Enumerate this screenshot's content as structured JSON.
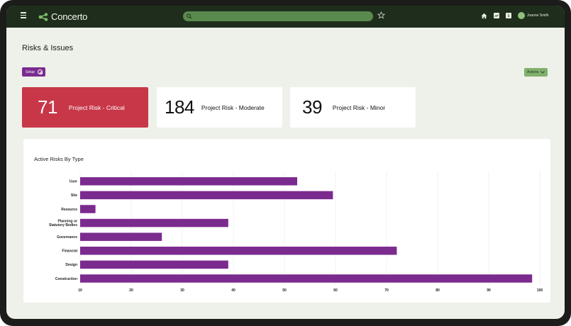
{
  "app": {
    "brand": "Concerto",
    "user_name": "Joanne Smith",
    "search_placeholder": ""
  },
  "page": {
    "title": "Risks & Issues",
    "setup_label": "Setup",
    "actions_label": "Actions"
  },
  "kpis": [
    {
      "value": "71",
      "label": "Project Risk - Critical"
    },
    {
      "value": "184",
      "label": "Project Risk - Moderate"
    },
    {
      "value": "39",
      "label": "Project Risk - Minor"
    }
  ],
  "colors": {
    "topbar": "#1f2d1c",
    "accent_purple": "#7a2b8f",
    "critical_red": "#c73748",
    "actions_green": "#7fb06c",
    "search_green": "#5a8a4d",
    "bar_purple": "#7b2a8e"
  },
  "icons": [
    "menu-icon",
    "concerto-logo-icon",
    "search-icon",
    "star-icon",
    "home-icon",
    "chart-icon",
    "info-icon",
    "avatar",
    "settings-icon",
    "chevron-down-icon"
  ],
  "chart_data": {
    "type": "bar",
    "orientation": "horizontal",
    "title": "Active Risks By Type",
    "categories": [
      "User",
      "Site",
      "Resource",
      "Planning or Statutory Bodies",
      "Governance",
      "Financial",
      "Design",
      "Construction"
    ],
    "values": [
      52.5,
      59.5,
      13,
      39,
      26,
      72,
      39,
      98.5
    ],
    "xlim": [
      10,
      100
    ],
    "xticks": [
      10,
      20,
      30,
      40,
      50,
      60,
      70,
      80,
      90,
      100
    ],
    "grid": true,
    "xlabel": "",
    "ylabel": ""
  }
}
